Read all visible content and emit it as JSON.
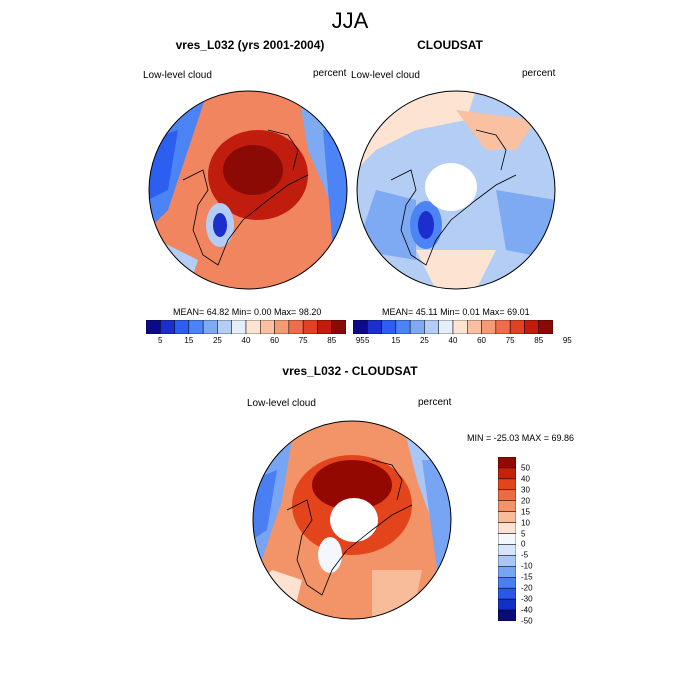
{
  "figure": {
    "title": "JJA"
  },
  "colors": {
    "sequential": [
      "#0b0b8a",
      "#1c2fcc",
      "#2c5ef0",
      "#4d84f5",
      "#7ea9f3",
      "#b3cdf5",
      "#e6eefa",
      "#fce3d2",
      "#f9c0a1",
      "#f49a74",
      "#ee6e4a",
      "#e04224",
      "#c11d0e",
      "#8c0a05"
    ],
    "diverging": [
      "#0a0a7a",
      "#1030c8",
      "#2b57ea",
      "#4a7ff3",
      "#77a5f4",
      "#a8c7f6",
      "#d7e5fa",
      "#f4f7fd",
      "#fde2d1",
      "#f8bc9b",
      "#f39468",
      "#ee6b3e",
      "#e4441c",
      "#c8200a",
      "#930800"
    ]
  },
  "panels": [
    {
      "title": "vres_L032 (yrs 2001-2004)",
      "left_label": "Low-level cloud",
      "right_label": "percent",
      "stats": "MEAN=  64.82  Min=   0.00  Max=  98.20",
      "ticks": [
        "5",
        "15",
        "25",
        "40",
        "60",
        "75",
        "85",
        "95"
      ]
    },
    {
      "title": "CLOUDSAT",
      "left_label": "Low-level cloud",
      "right_label": "percent",
      "stats": "MEAN=  45.11  Min=   0.01  Max=  69.01",
      "ticks": [
        "5",
        "15",
        "25",
        "40",
        "60",
        "75",
        "85",
        "95"
      ]
    },
    {
      "title": "vres_L032 - CLOUDSAT",
      "left_label": "Low-level cloud",
      "right_label": "percent",
      "stats": "MIN = -25.03 MAX =  69.86",
      "ticks": [
        "50",
        "40",
        "30",
        "20",
        "15",
        "10",
        "5",
        "0",
        "-5",
        "-10",
        "-15",
        "-20",
        "-30",
        "-40",
        "-50"
      ]
    }
  ]
}
